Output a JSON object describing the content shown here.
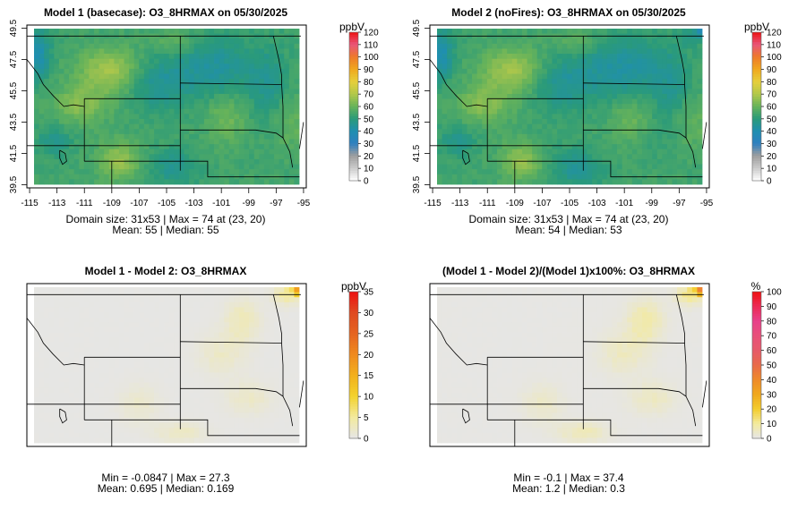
{
  "chart_data": [
    {
      "type": "heatmap",
      "title": "Model 1 (basecase): O3_8HRMAX on 05/30/2025",
      "xticks": [
        "-115",
        "-113",
        "-111",
        "-109",
        "-107",
        "-105",
        "-103",
        "-101",
        "-99",
        "-97",
        "-95"
      ],
      "yticks": [
        "39.5",
        "41.5",
        "43.5",
        "45.5",
        "47.5",
        "49.5"
      ],
      "xlim": [
        -115.2,
        -94.8
      ],
      "ylim": [
        39.3,
        49.7
      ],
      "colorbar": {
        "label": "ppbV",
        "ticks": [
          "0",
          "10",
          "20",
          "30",
          "40",
          "50",
          "60",
          "70",
          "80",
          "90",
          "100",
          "110",
          "120"
        ],
        "min": 0,
        "max": 120
      },
      "field": "base",
      "stats": [
        "Domain size: 31x53 | Max = 74 at (23, 20)",
        "Mean: 55 |  Median: 55"
      ]
    },
    {
      "type": "heatmap",
      "title": "Model 2 (noFires): O3_8HRMAX on 05/30/2025",
      "xticks": [
        "-115",
        "-113",
        "-111",
        "-109",
        "-107",
        "-105",
        "-103",
        "-101",
        "-99",
        "-97",
        "-95"
      ],
      "yticks": [
        "39.5",
        "41.5",
        "43.5",
        "45.5",
        "47.5",
        "49.5"
      ],
      "xlim": [
        -115.2,
        -94.8
      ],
      "ylim": [
        39.3,
        49.7
      ],
      "colorbar": {
        "label": "ppbV",
        "ticks": [
          "0",
          "10",
          "20",
          "30",
          "40",
          "50",
          "60",
          "70",
          "80",
          "90",
          "100",
          "110",
          "120"
        ],
        "min": 0,
        "max": 120
      },
      "field": "nofire",
      "stats": [
        "Domain size: 31x53 | Max = 74 at (23, 20)",
        "Mean: 54 |  Median: 53"
      ]
    },
    {
      "type": "heatmap",
      "title": "Model 1 - Model 2: O3_8HRMAX",
      "xticks": [],
      "yticks": [],
      "xlim": [
        -115.2,
        -94.8
      ],
      "ylim": [
        39.3,
        49.7
      ],
      "colorbar": {
        "label": "ppbV",
        "ticks": [
          "0",
          "5",
          "10",
          "15",
          "20",
          "25",
          "30",
          "35"
        ],
        "min": 0,
        "max": 35
      },
      "field": "diff",
      "stats": [
        "Min = -0.0847 | Max = 27.3",
        "Mean: 0.695 |  Median: 0.169"
      ]
    },
    {
      "type": "heatmap",
      "title": "(Model 1 - Model 2)/(Model 1)x100%: O3_8HRMAX",
      "xticks": [],
      "yticks": [],
      "xlim": [
        -115.2,
        -94.8
      ],
      "ylim": [
        39.3,
        49.7
      ],
      "colorbar": {
        "label": "%",
        "ticks": [
          "0",
          "10",
          "20",
          "30",
          "40",
          "50",
          "60",
          "70",
          "80",
          "90",
          "100"
        ],
        "min": 0,
        "max": 100
      },
      "field": "pct",
      "stats": [
        "Min = -0.1 | Max = 37.4",
        "Mean: 1.2 |  Median: 0.3"
      ]
    }
  ],
  "colors": {
    "ppbv_scale": [
      "#ffffff",
      "#cccccc",
      "#9e9e9e",
      "#2f7fbf",
      "#1f8fb0",
      "#2a9a7a",
      "#67b35a",
      "#b3c84a",
      "#e6cf3a",
      "#f0a81e",
      "#ee7a2a",
      "#e8557a",
      "#ee1111"
    ],
    "diff_scale": [
      "#e6e6e6",
      "#f3ea9e",
      "#f3d22e",
      "#f2b01d",
      "#ef8a1f",
      "#e56420",
      "#df4a20",
      "#ee1111"
    ],
    "pct_scale": [
      "#e6e6e6",
      "#f3ea9e",
      "#f3cc2e",
      "#f0a81e",
      "#ee8a2a",
      "#e86a4a",
      "#e65a6a",
      "#e8507a",
      "#e8408a",
      "#ec2a55",
      "#ee1111"
    ]
  }
}
